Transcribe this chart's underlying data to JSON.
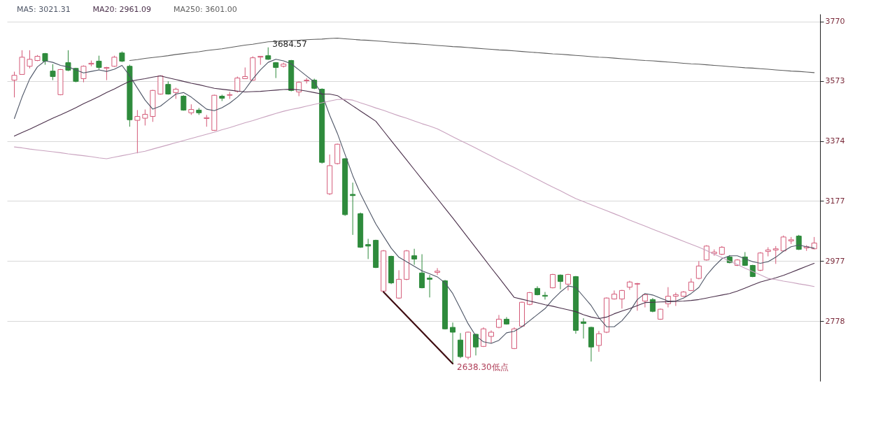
{
  "chart_data": {
    "type": "candlestick",
    "categories": [
      null,
      null,
      null,
      null,
      null,
      null,
      null,
      null,
      null,
      null,
      null,
      null,
      null,
      null,
      null,
      null,
      null,
      null,
      null,
      null,
      null,
      null,
      null,
      null,
      null,
      null,
      null,
      null,
      null,
      null,
      null,
      null,
      null,
      null,
      null,
      null,
      null,
      null,
      null,
      null,
      null,
      null,
      null,
      null,
      null,
      null,
      null,
      null,
      null,
      null,
      null,
      null,
      null,
      null,
      null,
      null,
      null,
      null,
      null,
      null,
      null,
      null,
      null,
      null,
      null,
      null,
      null,
      null,
      null,
      null,
      null,
      null,
      null,
      null,
      null,
      null,
      null,
      null,
      null,
      null,
      null,
      null,
      null,
      null,
      null,
      null,
      null,
      null,
      null,
      null,
      null,
      null,
      null,
      null,
      null,
      null,
      null,
      null,
      null,
      null,
      null,
      null,
      null,
      null,
      null
    ],
    "ohlc": [
      [
        3576,
        3604,
        3519,
        3592
      ],
      [
        3595,
        3675,
        3595,
        3652
      ],
      [
        3622,
        3675,
        3615,
        3645
      ],
      [
        3641,
        3659,
        3639,
        3655
      ],
      [
        3664,
        3666,
        3627,
        3639
      ],
      [
        3606,
        3629,
        3576,
        3588
      ],
      [
        3528,
        3613,
        3526,
        3611
      ],
      [
        3634,
        3675,
        3606,
        3609
      ],
      [
        3615,
        3617,
        3569,
        3572
      ],
      [
        3581,
        3625,
        3569,
        3622
      ],
      [
        3629,
        3641,
        3622,
        3632
      ],
      [
        3639,
        3657,
        3611,
        3618
      ],
      [
        3615,
        3620,
        3576,
        3618
      ],
      [
        3622,
        3657,
        3620,
        3652
      ],
      [
        3666,
        3671,
        3636,
        3639
      ],
      [
        3622,
        3627,
        3422,
        3445
      ],
      [
        3443,
        3477,
        3334,
        3456
      ],
      [
        3450,
        3479,
        3426,
        3463
      ],
      [
        3456,
        3544,
        3438,
        3542
      ],
      [
        3530,
        3592,
        3528,
        3590
      ],
      [
        3562,
        3572,
        3528,
        3530
      ],
      [
        3535,
        3551,
        3514,
        3546
      ],
      [
        3523,
        3526,
        3475,
        3477
      ],
      [
        3468,
        3496,
        3461,
        3479
      ],
      [
        3477,
        3484,
        3461,
        3468
      ],
      [
        3449,
        3461,
        3422,
        3452
      ],
      [
        3410,
        3528,
        3408,
        3526
      ],
      [
        3523,
        3528,
        3507,
        3516
      ],
      [
        3526,
        3537,
        3514,
        3528
      ],
      [
        3539,
        3588,
        3535,
        3583
      ],
      [
        3581,
        3618,
        3581,
        3588
      ],
      [
        3576,
        3655,
        3574,
        3650
      ],
      [
        3652,
        3655,
        3627,
        3655
      ],
      [
        3657,
        3684.57,
        3643,
        3645
      ],
      [
        3634,
        3636,
        3583,
        3618
      ],
      [
        3622,
        3634,
        3618,
        3629
      ],
      [
        3641,
        3643,
        3539,
        3542
      ],
      [
        3537,
        3572,
        3523,
        3569
      ],
      [
        3574,
        3583,
        3565,
        3576
      ],
      [
        3576,
        3581,
        3546,
        3549
      ],
      [
        3546,
        3549,
        3300,
        3304
      ],
      [
        3200,
        3330,
        3196,
        3293
      ],
      [
        3300,
        3366,
        3297,
        3364
      ],
      [
        3316,
        3318,
        3127,
        3131
      ],
      [
        3198,
        3237,
        3064,
        3194
      ],
      [
        3134,
        3138,
        3021,
        3023
      ],
      [
        3032,
        3051,
        2984,
        3027
      ],
      [
        3046,
        3048,
        2954,
        2956
      ],
      [
        2878,
        3014,
        2875,
        3011
      ],
      [
        2993,
        2995,
        2901,
        2905
      ],
      [
        2855,
        2947,
        2852,
        2917
      ],
      [
        2917,
        3014,
        2914,
        3011
      ],
      [
        2995,
        3018,
        2965,
        2984
      ],
      [
        2938,
        3000,
        2887,
        2889
      ],
      [
        2921,
        2931,
        2857,
        2917
      ],
      [
        2940,
        2954,
        2931,
        2944
      ],
      [
        2912,
        2915,
        2751,
        2753
      ],
      [
        2758,
        2774,
        2638.3,
        2742
      ],
      [
        2716,
        2739,
        2656,
        2661
      ],
      [
        2659,
        2744,
        2652,
        2742
      ],
      [
        2735,
        2737,
        2665,
        2693
      ],
      [
        2695,
        2758,
        2693,
        2753
      ],
      [
        2728,
        2748,
        2705,
        2742
      ],
      [
        2758,
        2799,
        2755,
        2785
      ],
      [
        2785,
        2792,
        2767,
        2769
      ],
      [
        2688,
        2758,
        2686,
        2753
      ],
      [
        2762,
        2843,
        2760,
        2841
      ],
      [
        2834,
        2875,
        2831,
        2873
      ],
      [
        2887,
        2894,
        2864,
        2866
      ],
      [
        2864,
        2875,
        2850,
        2861
      ],
      [
        2889,
        2935,
        2887,
        2933
      ],
      [
        2931,
        2933,
        2884,
        2910
      ],
      [
        2901,
        2935,
        2880,
        2933
      ],
      [
        2926,
        2928,
        2737,
        2748
      ],
      [
        2776,
        2788,
        2721,
        2771
      ],
      [
        2758,
        2760,
        2645,
        2693
      ],
      [
        2698,
        2746,
        2677,
        2737
      ],
      [
        2742,
        2857,
        2739,
        2855
      ],
      [
        2852,
        2880,
        2850,
        2868
      ],
      [
        2852,
        2882,
        2820,
        2880
      ],
      [
        2891,
        2912,
        2882,
        2908
      ],
      [
        2901,
        2905,
        2813,
        2903
      ],
      [
        2845,
        2868,
        2824,
        2866
      ],
      [
        2850,
        2855,
        2808,
        2811
      ],
      [
        2785,
        2820,
        2783,
        2818
      ],
      [
        2836,
        2891,
        2824,
        2861
      ],
      [
        2861,
        2873,
        2829,
        2866
      ],
      [
        2861,
        2878,
        2859,
        2875
      ],
      [
        2880,
        2920,
        2878,
        2908
      ],
      [
        2920,
        2977,
        2917,
        2961
      ],
      [
        2981,
        3030,
        2979,
        3027
      ],
      [
        3002,
        3016,
        2995,
        3007
      ],
      [
        3000,
        3027,
        2997,
        3023
      ],
      [
        2991,
        2997,
        2970,
        2972
      ],
      [
        2963,
        2984,
        2961,
        2981
      ],
      [
        2991,
        3007,
        2961,
        2963
      ],
      [
        2963,
        2965,
        2924,
        2926
      ],
      [
        2947,
        3007,
        2944,
        3004
      ],
      [
        3009,
        3023,
        2993,
        3014
      ],
      [
        3014,
        3027,
        2968,
        3018
      ],
      [
        3011,
        3062,
        3009,
        3057
      ],
      [
        3044,
        3057,
        3034,
        3048
      ],
      [
        3060,
        3064,
        3014,
        3016
      ],
      [
        3021,
        3030,
        3011,
        3025
      ],
      [
        3018,
        3057,
        3016,
        3037
      ]
    ],
    "colors": [
      "#d45a78",
      "#d45a78",
      "#d45a78",
      "#d45a78",
      "#2e8b3c",
      "#2e8b3c",
      "#d45a78",
      "#2e8b3c",
      "#2e8b3c",
      "#d45a78",
      "#d45a78",
      "#2e8b3c",
      "#d45a78",
      "#d45a78",
      "#2e8b3c",
      "#2e8b3c",
      "#d45a78",
      "#d45a78",
      "#d45a78",
      "#d45a78",
      "#2e8b3c",
      "#d45a78",
      "#2e8b3c",
      "#d45a78",
      "#2e8b3c",
      "#d45a78",
      "#d45a78",
      "#2e8b3c",
      "#d45a78",
      "#d45a78",
      "#d45a78",
      "#d45a78",
      "#d45a78",
      "#2e8b3c",
      "#2e8b3c",
      "#d45a78",
      "#2e8b3c",
      "#d45a78",
      "#d45a78",
      "#2e8b3c",
      "#2e8b3c",
      "#d45a78",
      "#d45a78",
      "#2e8b3c",
      "#2e8b3c",
      "#2e8b3c",
      "#2e8b3c",
      "#2e8b3c",
      "#d45a78",
      "#2e8b3c",
      "#d45a78",
      "#d45a78",
      "#2e8b3c",
      "#2e8b3c",
      "#2e8b3c",
      "#d45a78",
      "#2e8b3c",
      "#2e8b3c",
      "#2e8b3c",
      "#d45a78",
      "#2e8b3c",
      "#d45a78",
      "#d45a78",
      "#d45a78",
      "#2e8b3c",
      "#d45a78",
      "#d45a78",
      "#d45a78",
      "#2e8b3c",
      "#2e8b3c",
      "#d45a78",
      "#2e8b3c",
      "#d45a78",
      "#2e8b3c",
      "#2e8b3c",
      "#2e8b3c",
      "#d45a78",
      "#d45a78",
      "#d45a78",
      "#d45a78",
      "#d45a78",
      "#d45a78",
      "#d45a78",
      "#2e8b3c",
      "#d45a78",
      "#d45a78",
      "#d45a78",
      "#d45a78",
      "#d45a78",
      "#d45a78",
      "#d45a78",
      "#d45a78",
      "#d45a78",
      "#2e8b3c",
      "#d45a78",
      "#2e8b3c",
      "#2e8b3c",
      "#d45a78",
      "#d45a78",
      "#d45a78",
      "#d45a78",
      "#d45a78",
      "#2e8b3c",
      "#d45a78",
      "#d45a78"
    ],
    "series": [
      {
        "name": "MA5: 3021.31",
        "type": "line",
        "color": "#4d5566",
        "values": [
          3449,
          3520,
          3580,
          3620,
          3640,
          3635,
          3625,
          3620,
          3610,
          3600,
          3605,
          3610,
          3605,
          3612,
          3625,
          3590,
          3550,
          3510,
          3480,
          3490,
          3510,
          3530,
          3535,
          3520,
          3500,
          3480,
          3475,
          3485,
          3500,
          3520,
          3545,
          3580,
          3610,
          3635,
          3645,
          3640,
          3630,
          3610,
          3590,
          3570,
          3530,
          3460,
          3400,
          3330,
          3260,
          3200,
          3150,
          3100,
          3060,
          3020,
          2990,
          2975,
          2960,
          2945,
          2935,
          2925,
          2905,
          2870,
          2820,
          2770,
          2730,
          2710,
          2705,
          2715,
          2740,
          2745,
          2760,
          2780,
          2800,
          2820,
          2850,
          2875,
          2895,
          2890,
          2860,
          2830,
          2790,
          2760,
          2760,
          2780,
          2810,
          2850,
          2870,
          2865,
          2855,
          2845,
          2845,
          2855,
          2870,
          2890,
          2930,
          2960,
          2985,
          2995,
          2995,
          2985,
          2975,
          2970,
          2975,
          2990,
          3010,
          3025,
          3030,
          3025,
          3020
        ]
      },
      {
        "name": "MA20: 2961.09",
        "type": "line",
        "color": "#4a2f4a",
        "values": [
          3391,
          3403,
          3414,
          3426,
          3438,
          3450,
          3461,
          3473,
          3485,
          3498,
          3510,
          3522,
          3535,
          3547,
          3560,
          3572,
          3577,
          3581,
          3586,
          3590,
          3584,
          3578,
          3572,
          3566,
          3561,
          3555,
          3549,
          3546,
          3543,
          3540,
          3537,
          3538,
          3539,
          3541,
          3543,
          3545,
          3546,
          3544,
          3540,
          3535,
          3530,
          3530,
          3525,
          3508,
          3491,
          3474,
          3457,
          3440,
          3408,
          3376,
          3344,
          3312,
          3280,
          3248,
          3216,
          3184,
          3152,
          3120,
          3087,
          3054,
          3021,
          2988,
          2955,
          2923,
          2890,
          2857,
          2851,
          2845,
          2839,
          2833,
          2828,
          2822,
          2816,
          2810,
          2800,
          2792,
          2787,
          2792,
          2803,
          2812,
          2820,
          2830,
          2840,
          2841,
          2842,
          2843,
          2844,
          2845,
          2847,
          2850,
          2855,
          2860,
          2865,
          2870,
          2878,
          2888,
          2898,
          2908,
          2915,
          2922,
          2930,
          2940,
          2950,
          2960,
          2970
        ]
      },
      {
        "type": "line",
        "color": "#c9a3bf",
        "values": [
          3355,
          3352,
          3348,
          3345,
          3342,
          3339,
          3336,
          3332,
          3329,
          3326,
          3323,
          3319,
          3316,
          3321,
          3326,
          3331,
          3336,
          3341,
          3348,
          3355,
          3362,
          3369,
          3376,
          3383,
          3390,
          3397,
          3404,
          3412,
          3419,
          3427,
          3435,
          3442,
          3450,
          3458,
          3466,
          3473,
          3479,
          3484,
          3490,
          3496,
          3501,
          3507,
          3512,
          3513,
          3510,
          3501,
          3493,
          3484,
          3476,
          3467,
          3458,
          3450,
          3441,
          3432,
          3424,
          3415,
          3402,
          3389,
          3376,
          3364,
          3351,
          3338,
          3325,
          3312,
          3299,
          3287,
          3274,
          3261,
          3248,
          3235,
          3222,
          3210,
          3197,
          3184,
          3174,
          3164,
          3154,
          3144,
          3134,
          3124,
          3113,
          3103,
          3093,
          3083,
          3073,
          3063,
          3053,
          3043,
          3033,
          3023,
          3012,
          3000,
          2989,
          2977,
          2966,
          2954,
          2943,
          2932,
          2920,
          2916,
          2911,
          2907,
          2902,
          2898,
          2893
        ]
      },
      {
        "name": "MA250: 3601.00",
        "type": "line",
        "color": "#5e5e5e",
        "values": [
          null,
          null,
          null,
          null,
          null,
          null,
          null,
          null,
          null,
          null,
          null,
          null,
          null,
          null,
          null,
          3641,
          3644,
          3648,
          3651,
          3654,
          3657,
          3661,
          3664,
          3667,
          3670,
          3674,
          3677,
          3680,
          3684,
          3688,
          3692,
          3695,
          3699,
          3703,
          3704,
          3706,
          3707,
          3708,
          3710,
          3711,
          3712,
          3714,
          3715,
          3713,
          3711,
          3709,
          3708,
          3706,
          3704,
          3702,
          3700,
          3698,
          3697,
          3695,
          3693,
          3691,
          3689,
          3687,
          3686,
          3684,
          3682,
          3680,
          3678,
          3676,
          3675,
          3673,
          3671,
          3669,
          3667,
          3665,
          3663,
          3662,
          3660,
          3658,
          3656,
          3654,
          3652,
          3651,
          3649,
          3647,
          3645,
          3643,
          3641,
          3640,
          3638,
          3636,
          3634,
          3632,
          3630,
          3629,
          3627,
          3625,
          3623,
          3621,
          3619,
          3617,
          3616,
          3614,
          3612,
          3610,
          3608,
          3606,
          3605,
          3603,
          3601
        ]
      },
      {
        "type": "line",
        "color": "#3f0d12",
        "values": [
          null,
          null,
          null,
          null,
          null,
          null,
          null,
          null,
          null,
          null,
          null,
          null,
          null,
          null,
          null,
          null,
          null,
          null,
          null,
          null,
          null,
          null,
          null,
          null,
          null,
          null,
          null,
          null,
          null,
          null,
          null,
          null,
          null,
          null,
          null,
          null,
          null,
          null,
          null,
          null,
          null,
          null,
          null,
          null,
          null,
          null,
          null,
          null,
          2875,
          null,
          null,
          null,
          null,
          null,
          null,
          null,
          null,
          2638,
          null,
          null,
          null,
          null,
          null,
          null,
          null,
          null,
          null,
          null,
          null,
          null,
          null,
          null,
          null,
          null,
          null,
          null,
          null,
          null,
          null,
          null,
          null,
          null,
          null,
          null,
          null,
          null,
          null,
          null,
          null,
          null,
          null,
          null,
          null,
          null,
          null,
          null,
          null,
          null,
          null,
          null,
          null,
          null,
          null,
          null,
          null
        ]
      }
    ],
    "ylim": [
      2580,
      3795
    ],
    "yticks": [
      2778,
      2977,
      3177,
      3374,
      3573,
      3770
    ],
    "grid": "y",
    "tick_labels": "y",
    "annotations": [
      "3684.57",
      "2638.30低点"
    ]
  }
}
